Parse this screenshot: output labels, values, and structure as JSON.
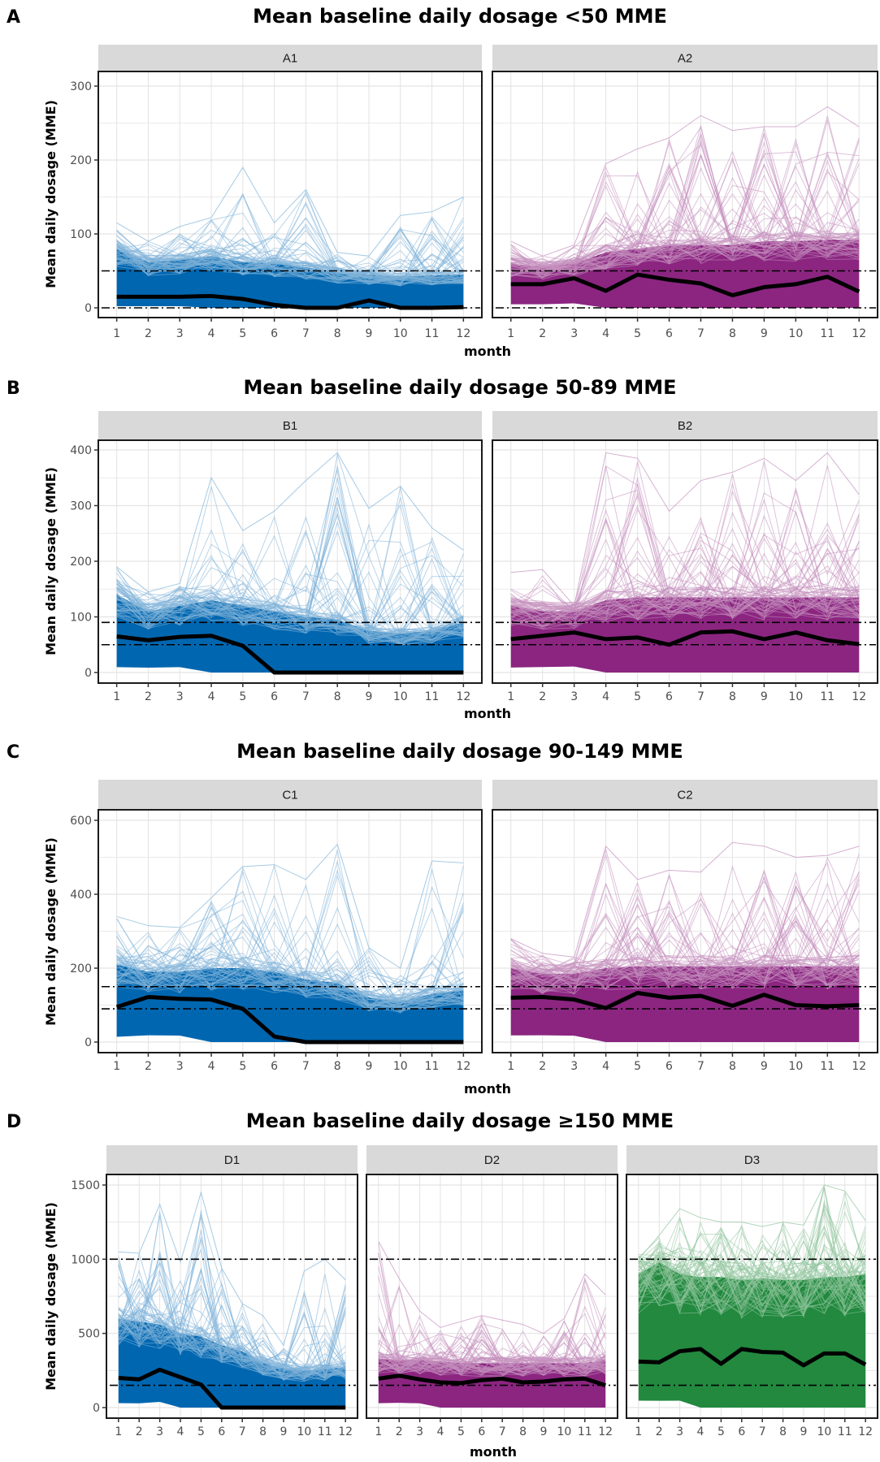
{
  "chart_data": [
    {
      "type": "line",
      "section": "A",
      "title": "Mean baseline daily dosage <50 MME",
      "xlabel": "month",
      "ylabel": "Mean daily dosage (MME)",
      "x": [
        1,
        2,
        3,
        4,
        5,
        6,
        7,
        8,
        9,
        10,
        11,
        12
      ],
      "ylim": [
        0,
        310
      ],
      "yticks": [
        0,
        100,
        200,
        300
      ],
      "reference_lines": [
        0,
        50
      ],
      "grid": true,
      "panels": [
        {
          "label": "A1",
          "color": "#0066b0",
          "mean": [
            15,
            15,
            15,
            16,
            12,
            4,
            0,
            0,
            10,
            0,
            0,
            1
          ],
          "band_upper": [
            80,
            62,
            65,
            70,
            62,
            60,
            55,
            48,
            45,
            42,
            44,
            45
          ],
          "max_outliers": [
            115,
            90,
            110,
            122,
            190,
            115,
            160,
            75,
            70,
            125,
            130,
            150
          ]
        },
        {
          "label": "A2",
          "color": "#8b2580",
          "mean": [
            32,
            32,
            40,
            23,
            45,
            38,
            33,
            17,
            28,
            32,
            42,
            22
          ],
          "band_upper": [
            60,
            55,
            60,
            75,
            80,
            85,
            85,
            85,
            90,
            90,
            92,
            92
          ],
          "max_outliers": [
            90,
            70,
            85,
            195,
            215,
            230,
            260,
            240,
            245,
            245,
            272,
            245
          ]
        }
      ]
    },
    {
      "type": "line",
      "section": "B",
      "title": "Mean baseline daily dosage 50-89 MME",
      "xlabel": "month",
      "ylabel": "Mean daily dosage (MME)",
      "x": [
        1,
        2,
        3,
        4,
        5,
        6,
        7,
        8,
        9,
        10,
        11,
        12
      ],
      "ylim": [
        0,
        410
      ],
      "yticks": [
        0,
        100,
        200,
        300,
        400
      ],
      "reference_lines": [
        50,
        90
      ],
      "grid": true,
      "panels": [
        {
          "label": "B1",
          "color": "#0066b0",
          "mean": [
            65,
            58,
            64,
            66,
            48,
            0,
            0,
            0,
            0,
            0,
            0,
            0
          ],
          "band_upper": [
            140,
            110,
            120,
            130,
            120,
            110,
            100,
            95,
            75,
            70,
            75,
            90
          ],
          "max_outliers": [
            190,
            145,
            160,
            350,
            255,
            290,
            345,
            395,
            295,
            335,
            260,
            220
          ]
        },
        {
          "label": "B2",
          "color": "#8b2580",
          "mean": [
            60,
            66,
            72,
            60,
            63,
            50,
            72,
            74,
            60,
            72,
            58,
            51
          ],
          "band_upper": [
            120,
            110,
            110,
            130,
            135,
            135,
            135,
            135,
            135,
            135,
            135,
            135
          ],
          "max_outliers": [
            180,
            185,
            120,
            395,
            385,
            290,
            345,
            360,
            385,
            345,
            395,
            320
          ]
        }
      ]
    },
    {
      "type": "line",
      "section": "C",
      "title": "Mean baseline daily dosage 90-149 MME",
      "xlabel": "month",
      "ylabel": "Mean daily dosage (MME)",
      "x": [
        1,
        2,
        3,
        4,
        5,
        6,
        7,
        8,
        9,
        10,
        11,
        12
      ],
      "ylim": [
        0,
        620
      ],
      "yticks": [
        0,
        200,
        400,
        600
      ],
      "reference_lines": [
        90,
        150
      ],
      "grid": true,
      "panels": [
        {
          "label": "C1",
          "color": "#0066b0",
          "mean": [
            95,
            122,
            117,
            115,
            90,
            15,
            0,
            0,
            0,
            0,
            0,
            0
          ],
          "band_upper": [
            210,
            190,
            190,
            200,
            200,
            190,
            170,
            160,
            120,
            110,
            130,
            140
          ],
          "max_outliers": [
            340,
            315,
            310,
            390,
            475,
            480,
            440,
            535,
            255,
            200,
            490,
            485
          ]
        },
        {
          "label": "C2",
          "color": "#8b2580",
          "mean": [
            120,
            122,
            115,
            92,
            133,
            120,
            125,
            98,
            128,
            100,
            97,
            100
          ],
          "band_upper": [
            200,
            185,
            185,
            200,
            205,
            205,
            205,
            205,
            205,
            205,
            205,
            205
          ],
          "max_outliers": [
            280,
            240,
            230,
            530,
            440,
            465,
            460,
            540,
            530,
            500,
            505,
            530
          ]
        }
      ]
    },
    {
      "type": "line",
      "section": "D",
      "title": "Mean baseline daily dosage ≥150 MME",
      "xlabel": "month",
      "ylabel": "Mean daily dosage (MME)",
      "x": [
        1,
        2,
        3,
        4,
        5,
        6,
        7,
        8,
        9,
        10,
        11,
        12
      ],
      "ylim": [
        0,
        1560
      ],
      "yticks": [
        0,
        500,
        1000,
        1500
      ],
      "reference_lines": [
        150,
        1000
      ],
      "grid": true,
      "panels": [
        {
          "label": "D1",
          "color": "#0066b0",
          "mean": [
            200,
            190,
            255,
            205,
            155,
            0,
            0,
            0,
            0,
            0,
            0,
            0
          ],
          "band_upper": [
            600,
            580,
            560,
            500,
            480,
            420,
            380,
            300,
            260,
            250,
            260,
            270
          ],
          "max_outliers": [
            1050,
            1040,
            1370,
            980,
            1450,
            940,
            700,
            620,
            420,
            920,
            1000,
            860
          ]
        },
        {
          "label": "D2",
          "color": "#8b2580",
          "mean": [
            195,
            215,
            190,
            170,
            165,
            185,
            195,
            170,
            175,
            190,
            195,
            150
          ],
          "band_upper": [
            330,
            320,
            320,
            310,
            300,
            300,
            300,
            300,
            300,
            300,
            300,
            320
          ],
          "max_outliers": [
            1120,
            870,
            650,
            540,
            580,
            620,
            590,
            560,
            500,
            600,
            900,
            760
          ]
        },
        {
          "label": "D3",
          "color": "#22893f",
          "mean": [
            310,
            305,
            380,
            395,
            295,
            395,
            375,
            370,
            285,
            365,
            365,
            290
          ],
          "band_upper": [
            900,
            980,
            900,
            880,
            880,
            860,
            870,
            860,
            860,
            880,
            880,
            900
          ],
          "max_outliers": [
            1000,
            1160,
            1340,
            1280,
            1250,
            1250,
            1220,
            1250,
            1230,
            1500,
            1460,
            1260
          ]
        }
      ]
    }
  ]
}
